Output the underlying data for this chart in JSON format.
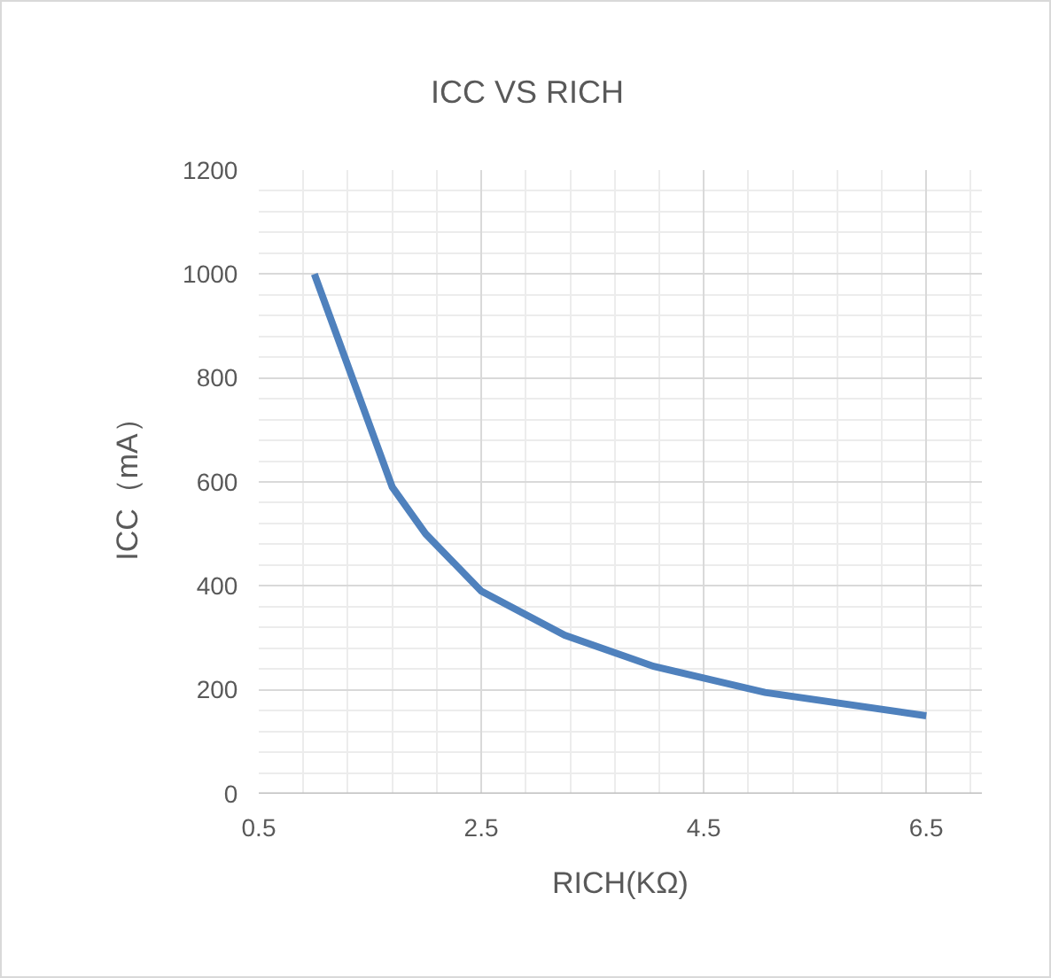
{
  "chart_data": {
    "type": "line",
    "title": "ICC VS RICH",
    "xlabel": "RICH(KΩ)",
    "ylabel": "ICC（mA）",
    "x": [
      1.0,
      1.7,
      2.0,
      2.5,
      3.25,
      4.05,
      5.05,
      6.5
    ],
    "series": [
      {
        "color": "#4f81bd",
        "values": [
          1000,
          590,
          500,
          390,
          305,
          245,
          195,
          150
        ]
      }
    ],
    "xlim": [
      0.5,
      7
    ],
    "xticks": [
      0.5,
      2.5,
      4.5,
      6.5
    ],
    "ylim": [
      0,
      1200
    ],
    "yticks": [
      0,
      200,
      400,
      600,
      800,
      1000,
      1200
    ],
    "grid": true,
    "marker": "none",
    "line_style": "solid"
  }
}
